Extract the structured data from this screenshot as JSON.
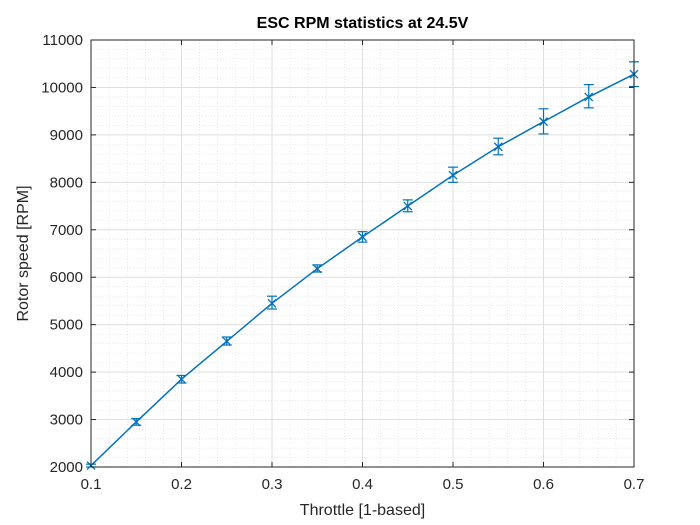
{
  "chart_data": {
    "type": "line",
    "title": "ESC RPM statistics at 24.5V",
    "xlabel": "Throttle [1-based]",
    "ylabel": "Rotor speed [RPM]",
    "xlim": [
      0.1,
      0.7
    ],
    "ylim": [
      2000,
      11000
    ],
    "xticks": [
      0.1,
      0.2,
      0.3,
      0.4,
      0.5,
      0.6,
      0.7
    ],
    "yticks": [
      2000,
      3000,
      4000,
      5000,
      6000,
      7000,
      8000,
      9000,
      10000,
      11000
    ],
    "xtick_labels": [
      "0.1",
      "0.2",
      "0.3",
      "0.4",
      "0.5",
      "0.6",
      "0.7"
    ],
    "ytick_labels": [
      "2000",
      "3000",
      "4000",
      "5000",
      "6000",
      "7000",
      "8000",
      "9000",
      "10000",
      "11000"
    ],
    "grid": true,
    "minor_grid": true,
    "series": [
      {
        "color": "#0072BD",
        "marker": "x",
        "error_bars": true,
        "x": [
          0.1,
          0.15,
          0.2,
          0.25,
          0.3,
          0.35,
          0.4,
          0.45,
          0.5,
          0.55,
          0.6,
          0.65,
          0.7
        ],
        "y": [
          2030,
          2950,
          3850,
          4650,
          5450,
          6180,
          6850,
          7500,
          8150,
          8750,
          9280,
          9800,
          10280
        ],
        "y_low": [
          2000,
          2880,
          3770,
          4570,
          5330,
          6110,
          6740,
          7380,
          8000,
          8580,
          9020,
          9570,
          10020
        ],
        "y_high": [
          2060,
          3020,
          3930,
          4740,
          5600,
          6260,
          6960,
          7630,
          8320,
          8930,
          9550,
          10060,
          10540
        ]
      }
    ]
  }
}
